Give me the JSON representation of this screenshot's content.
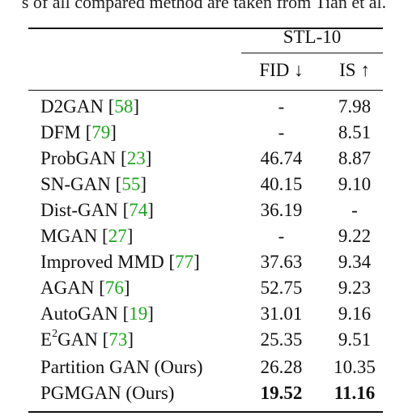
{
  "caption": "s of all compared method are taken from Tian et al.",
  "table": {
    "group_header": "STL-10",
    "columns": {
      "fid": "FID ↓",
      "is": "IS ↑"
    },
    "rows": [
      {
        "method": "D2GAN",
        "cite": "58",
        "fid": "-",
        "is": "7.98"
      },
      {
        "method": "DFM",
        "cite": "79",
        "fid": "-",
        "is": "8.51"
      },
      {
        "method": "ProbGAN",
        "cite": "23",
        "fid": "46.74",
        "is": "8.87"
      },
      {
        "method": "SN-GAN",
        "cite": "55",
        "fid": "40.15",
        "is": "9.10"
      },
      {
        "method": "Dist-GAN",
        "cite": "74",
        "fid": "36.19",
        "is": "-"
      },
      {
        "method": "MGAN",
        "cite": "27",
        "fid": "-",
        "is": "9.22"
      },
      {
        "method": "Improved MMD",
        "cite": "77",
        "fid": "37.63",
        "is": "9.34"
      },
      {
        "method": "AGAN",
        "cite": "76",
        "fid": "52.75",
        "is": "9.23"
      },
      {
        "method": "AutoGAN",
        "cite": "19",
        "fid": "31.01",
        "is": "9.16"
      },
      {
        "method_base": "E",
        "method_sup": "2",
        "method_rest": "GAN",
        "cite": "73",
        "fid": "25.35",
        "is": "9.51"
      },
      {
        "method": "Partition GAN (Ours)",
        "fid": "26.28",
        "is": "10.35"
      },
      {
        "method": "PGMGAN (Ours)",
        "fid": "19.52",
        "is": "11.16"
      }
    ]
  }
}
